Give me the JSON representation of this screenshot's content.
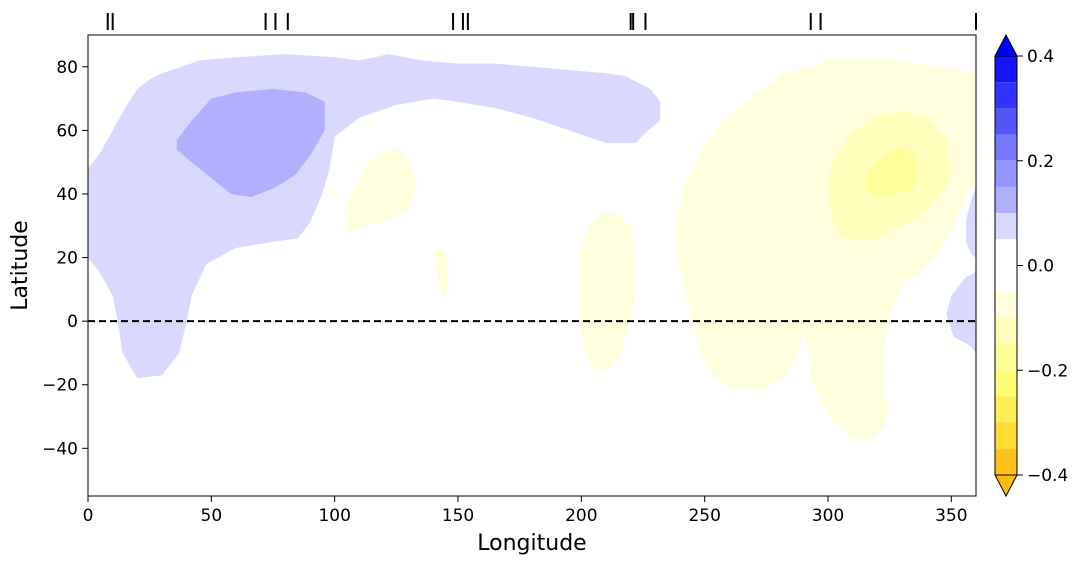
{
  "chart_data": {
    "type": "contourf",
    "xlabel": "Longitude",
    "ylabel": "Latitude",
    "xlim": [
      0,
      360
    ],
    "ylim": [
      -55,
      90
    ],
    "xticks": [
      0,
      50,
      100,
      150,
      200,
      250,
      300,
      350
    ],
    "yticks": [
      -40,
      -20,
      0,
      20,
      40,
      60,
      80
    ],
    "xtick_labels": [
      "0",
      "50",
      "100",
      "150",
      "200",
      "250",
      "300",
      "350"
    ],
    "ytick_labels": [
      "−40",
      "−20",
      "0",
      "20",
      "40",
      "60",
      "80"
    ],
    "grid": false,
    "reference_line": {
      "y": 0,
      "style": "dashed",
      "color": "#000000"
    },
    "top_markers_longitude": [
      8,
      10,
      72,
      76,
      81,
      148,
      152,
      154,
      220,
      221,
      226,
      293,
      297,
      360
    ],
    "colorbar": {
      "min": -0.4,
      "max": 0.4,
      "ticks": [
        0.4,
        0.2,
        0.0,
        -0.2,
        -0.4
      ],
      "tick_labels": [
        "0.4",
        "0.2",
        "0.0",
        "−0.2",
        "−0.4"
      ],
      "extend": "both",
      "bands": [
        {
          "from": 0.35,
          "to": 0.4,
          "color": "#1414ff"
        },
        {
          "from": 0.3,
          "to": 0.35,
          "color": "#3333ff"
        },
        {
          "from": 0.25,
          "to": 0.3,
          "color": "#5555ff"
        },
        {
          "from": 0.2,
          "to": 0.25,
          "color": "#7777ff"
        },
        {
          "from": 0.15,
          "to": 0.2,
          "color": "#9494ff"
        },
        {
          "from": 0.1,
          "to": 0.15,
          "color": "#b0b0ff"
        },
        {
          "from": 0.05,
          "to": 0.1,
          "color": "#d9d9ff"
        },
        {
          "from": -0.05,
          "to": 0.05,
          "color": "#ffffff"
        },
        {
          "from": -0.1,
          "to": -0.05,
          "color": "#ffffdd"
        },
        {
          "from": -0.15,
          "to": -0.1,
          "color": "#ffffbb"
        },
        {
          "from": -0.2,
          "to": -0.15,
          "color": "#ffff99"
        },
        {
          "from": -0.25,
          "to": -0.2,
          "color": "#ffff77"
        },
        {
          "from": -0.3,
          "to": -0.25,
          "color": "#ffee55"
        },
        {
          "from": -0.35,
          "to": -0.3,
          "color": "#ffdd33"
        },
        {
          "from": -0.4,
          "to": -0.35,
          "color": "#ffc41a"
        }
      ],
      "extend_colors": {
        "over": "#0000ff",
        "under": "#ffbb11"
      }
    },
    "regions": [
      {
        "name": "blue-outer",
        "level": 0.075,
        "color": "#d9d9ff",
        "points": [
          [
            0,
            48
          ],
          [
            5,
            53
          ],
          [
            10,
            60
          ],
          [
            15,
            67
          ],
          [
            20,
            73
          ],
          [
            25,
            76
          ],
          [
            30,
            78
          ],
          [
            38,
            80
          ],
          [
            45,
            82
          ],
          [
            60,
            83
          ],
          [
            80,
            84
          ],
          [
            100,
            83
          ],
          [
            110,
            82
          ],
          [
            122,
            84
          ],
          [
            135,
            82
          ],
          [
            150,
            81
          ],
          [
            165,
            81
          ],
          [
            180,
            80
          ],
          [
            195,
            79
          ],
          [
            210,
            78
          ],
          [
            218,
            77
          ],
          [
            223,
            75
          ],
          [
            228,
            73
          ],
          [
            232,
            69
          ],
          [
            232,
            63
          ],
          [
            227,
            60
          ],
          [
            222,
            56
          ],
          [
            210,
            56
          ],
          [
            195,
            60
          ],
          [
            180,
            64
          ],
          [
            165,
            67
          ],
          [
            150,
            69
          ],
          [
            140,
            70
          ],
          [
            125,
            68
          ],
          [
            110,
            64
          ],
          [
            100,
            58
          ],
          [
            98,
            48
          ],
          [
            95,
            40
          ],
          [
            90,
            31
          ],
          [
            85,
            26
          ],
          [
            75,
            25
          ],
          [
            60,
            23
          ],
          [
            48,
            18
          ],
          [
            42,
            8
          ],
          [
            40,
            0
          ],
          [
            37,
            -10
          ],
          [
            30,
            -17
          ],
          [
            20,
            -18
          ],
          [
            14,
            -10
          ],
          [
            12,
            0
          ],
          [
            10,
            8
          ],
          [
            5,
            15
          ],
          [
            0,
            20
          ]
        ]
      },
      {
        "name": "blue-inner",
        "level": 0.125,
        "color": "#b0b0ff",
        "points": [
          [
            36,
            57
          ],
          [
            42,
            63
          ],
          [
            50,
            70
          ],
          [
            60,
            72
          ],
          [
            75,
            73
          ],
          [
            88,
            72
          ],
          [
            96,
            69
          ],
          [
            96,
            60
          ],
          [
            90,
            52
          ],
          [
            84,
            46
          ],
          [
            76,
            42
          ],
          [
            66,
            39
          ],
          [
            58,
            40
          ],
          [
            50,
            45
          ],
          [
            42,
            50
          ],
          [
            36,
            54
          ]
        ]
      },
      {
        "name": "blue-east",
        "level": 0.075,
        "color": "#d9d9ff",
        "points": [
          [
            352,
            10
          ],
          [
            356,
            14
          ],
          [
            359,
            15
          ],
          [
            360,
            16
          ],
          [
            360,
            26
          ],
          [
            360,
            -10
          ],
          [
            358,
            -8
          ],
          [
            356,
            -7
          ],
          [
            351,
            -5
          ],
          [
            348,
            2
          ],
          [
            350,
            8
          ]
        ]
      },
      {
        "name": "blue-east-edge",
        "level": 0.075,
        "color": "#d9d9ff",
        "points": [
          [
            360,
            42
          ],
          [
            358,
            38
          ],
          [
            356,
            32
          ],
          [
            356,
            25
          ],
          [
            358,
            21
          ],
          [
            360,
            20
          ]
        ]
      },
      {
        "name": "yellow-north-pacific",
        "level": -0.075,
        "color": "#ffffdd",
        "points": [
          [
            104,
            35
          ],
          [
            108,
            42
          ],
          [
            112,
            48
          ],
          [
            118,
            53
          ],
          [
            126,
            54
          ],
          [
            131,
            49
          ],
          [
            133,
            41
          ],
          [
            130,
            36
          ],
          [
            123,
            32
          ],
          [
            112,
            30
          ],
          [
            106,
            28
          ]
        ]
      },
      {
        "name": "yellow-small-patch",
        "level": -0.075,
        "color": "#ffffdd",
        "points": [
          [
            140,
            22
          ],
          [
            141,
            18
          ],
          [
            142,
            13
          ],
          [
            143,
            8
          ],
          [
            145,
            8
          ],
          [
            146,
            14
          ],
          [
            146,
            20
          ],
          [
            144,
            23
          ]
        ]
      },
      {
        "name": "yellow-west-atlantic",
        "level": -0.075,
        "color": "#ffffdd",
        "points": [
          [
            199,
            22
          ],
          [
            203,
            30
          ],
          [
            209,
            34
          ],
          [
            215,
            34
          ],
          [
            220,
            30
          ],
          [
            222,
            20
          ],
          [
            222,
            10
          ],
          [
            220,
            0
          ],
          [
            216,
            -10
          ],
          [
            211,
            -16
          ],
          [
            205,
            -15
          ],
          [
            201,
            -8
          ],
          [
            199,
            5
          ]
        ]
      },
      {
        "name": "yellow-large-east",
        "level": -0.075,
        "color": "#ffffdd",
        "points": [
          [
            238,
            30
          ],
          [
            242,
            43
          ],
          [
            248,
            53
          ],
          [
            255,
            61
          ],
          [
            263,
            67
          ],
          [
            272,
            72
          ],
          [
            282,
            78
          ],
          [
            292,
            80
          ],
          [
            300,
            82
          ],
          [
            312,
            83
          ],
          [
            330,
            82
          ],
          [
            345,
            80
          ],
          [
            360,
            78
          ],
          [
            360,
            44
          ],
          [
            356,
            40
          ],
          [
            352,
            32
          ],
          [
            348,
            26
          ],
          [
            344,
            20
          ],
          [
            338,
            16
          ],
          [
            330,
            12
          ],
          [
            325,
            2
          ],
          [
            323,
            -8
          ],
          [
            322,
            -18
          ],
          [
            325,
            -28
          ],
          [
            323,
            -33
          ],
          [
            318,
            -37
          ],
          [
            310,
            -37
          ],
          [
            300,
            -30
          ],
          [
            293,
            -18
          ],
          [
            292,
            -8
          ],
          [
            290,
            -3
          ],
          [
            288,
            -10
          ],
          [
            282,
            -18
          ],
          [
            272,
            -22
          ],
          [
            262,
            -21
          ],
          [
            254,
            -18
          ],
          [
            248,
            -10
          ],
          [
            245,
            0
          ],
          [
            242,
            10
          ],
          [
            239,
            20
          ]
        ]
      },
      {
        "name": "yellow-mid",
        "level": -0.125,
        "color": "#ffffbb",
        "points": [
          [
            300,
            44
          ],
          [
            302,
            50
          ],
          [
            308,
            58
          ],
          [
            318,
            64
          ],
          [
            330,
            66
          ],
          [
            340,
            64
          ],
          [
            348,
            58
          ],
          [
            350,
            48
          ],
          [
            348,
            42
          ],
          [
            342,
            36
          ],
          [
            335,
            32
          ],
          [
            325,
            28
          ],
          [
            315,
            25
          ],
          [
            305,
            27
          ],
          [
            301,
            34
          ]
        ]
      },
      {
        "name": "yellow-core",
        "level": -0.175,
        "color": "#ffff99",
        "points": [
          [
            315,
            44
          ],
          [
            318,
            49
          ],
          [
            324,
            53
          ],
          [
            330,
            55
          ],
          [
            335,
            52
          ],
          [
            337,
            47
          ],
          [
            334,
            42
          ],
          [
            328,
            40
          ],
          [
            320,
            39
          ],
          [
            316,
            41
          ]
        ]
      }
    ]
  }
}
